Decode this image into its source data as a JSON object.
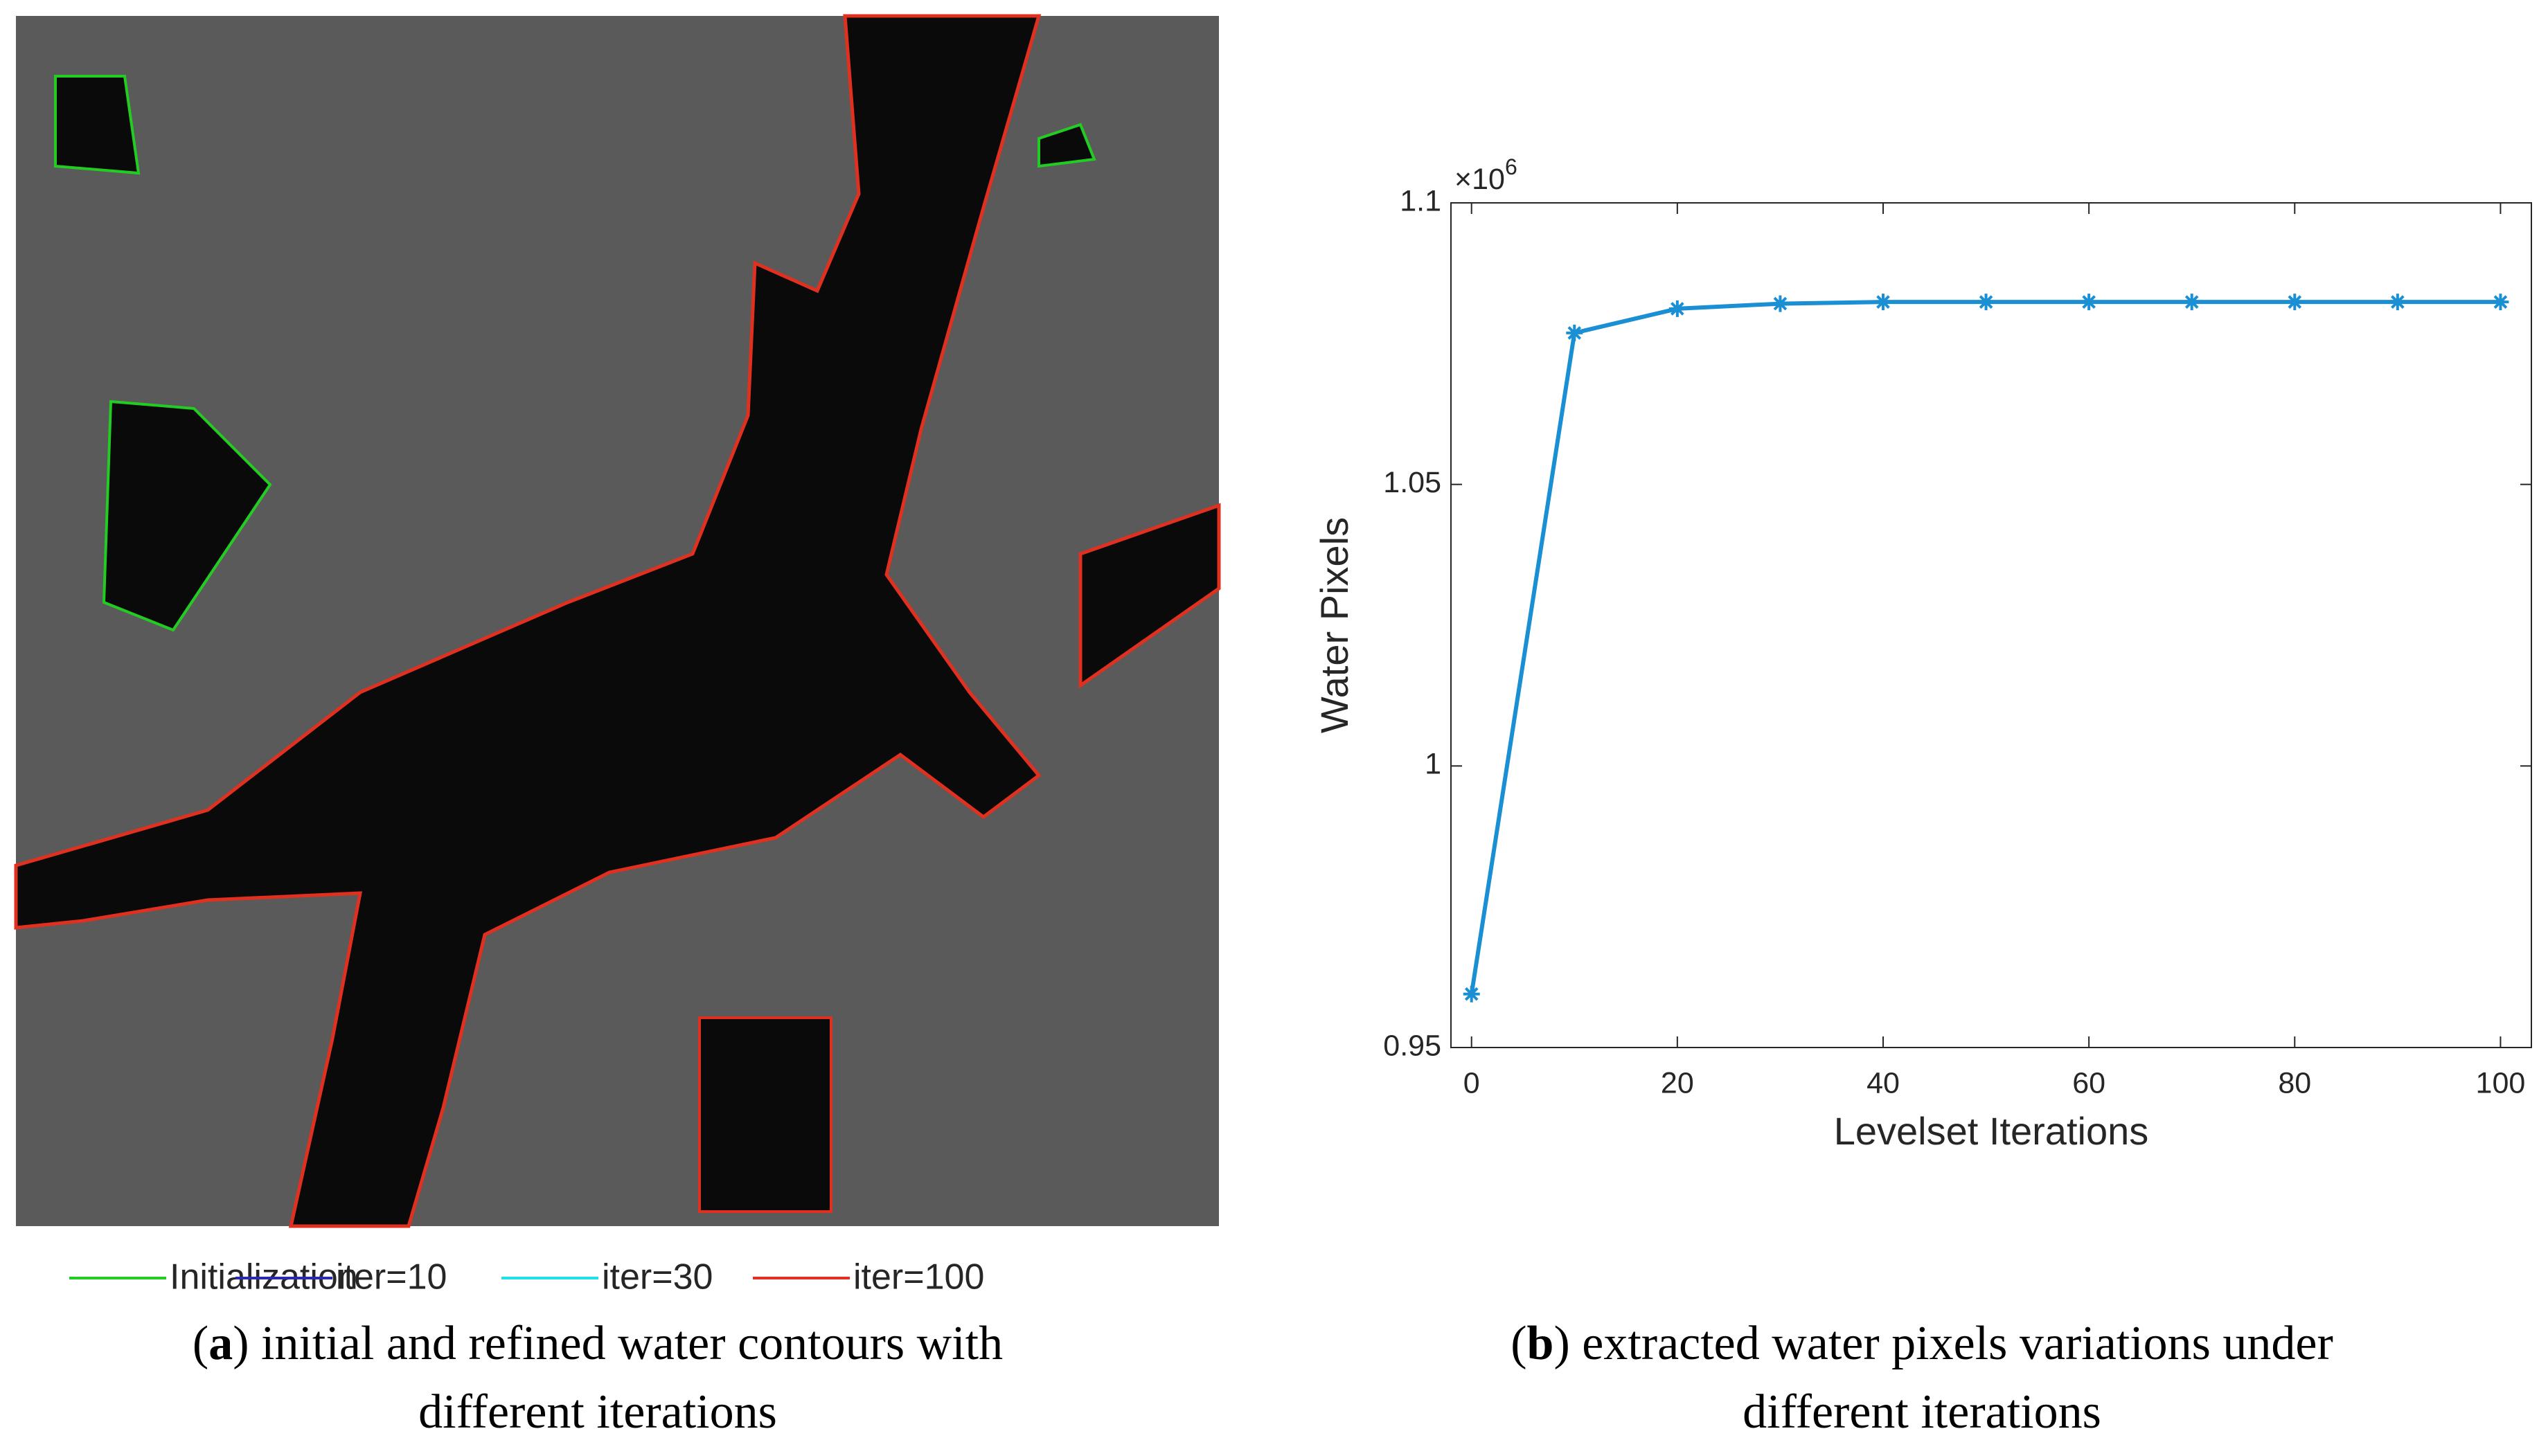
{
  "figure_a": {
    "legend": [
      {
        "name": "Initialization",
        "color": "#22cc22"
      },
      {
        "name": "iter=10",
        "color": "#2a2ab0"
      },
      {
        "name": "iter=30",
        "color": "#22e0e8"
      },
      {
        "name": "iter=100",
        "color": "#e03020"
      }
    ],
    "caption": [
      [
        "(",
        "a",
        ") initial and refined water contours with"
      ],
      [
        "different iterations"
      ]
    ]
  },
  "figure_b": {
    "caption": [
      [
        "(",
        "b",
        ") extracted water pixels variations under"
      ],
      [
        "different iterations"
      ]
    ]
  },
  "chart_data": {
    "type": "line",
    "x_label": "Levelset Iterations",
    "y_label": "Water Pixels",
    "y_exponent": {
      "base": "×10",
      "power": "6"
    },
    "x": [
      0,
      10,
      20,
      30,
      40,
      50,
      60,
      70,
      80,
      90,
      100
    ],
    "series": [
      {
        "name": "Water Pixels",
        "color": "#1a8fd4",
        "values": [
          0.9595,
          1.0769,
          1.0812,
          1.0821,
          1.0824,
          1.0824,
          1.0824,
          1.0824,
          1.0824,
          1.0824,
          1.0824
        ]
      }
    ],
    "xlim": [
      -2,
      103
    ],
    "ylim": [
      0.95,
      1.1
    ],
    "xticks": [
      0,
      20,
      40,
      60,
      80,
      100
    ],
    "yticks": [
      0.95,
      1,
      1.05,
      1.1
    ],
    "grid": false,
    "marker": "asterisk"
  }
}
